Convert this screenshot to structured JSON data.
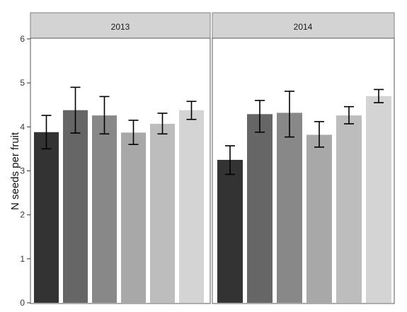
{
  "chart_data": {
    "type": "bar",
    "ylabel": "N seeds per fruit",
    "xlabel": "",
    "ylim": [
      0,
      6
    ],
    "yticks": [
      "0",
      "1",
      "2",
      "3",
      "4",
      "5",
      "6"
    ],
    "grid": false,
    "legend": "none",
    "panels": [
      {
        "strip": "2013",
        "values": [
          3.88,
          4.38,
          4.26,
          3.87,
          4.07,
          4.38
        ],
        "error_low": [
          3.5,
          3.86,
          3.84,
          3.6,
          3.84,
          4.17
        ],
        "error_high": [
          4.26,
          4.9,
          4.69,
          4.15,
          4.31,
          4.58
        ]
      },
      {
        "strip": "2014",
        "values": [
          3.25,
          4.29,
          4.32,
          3.82,
          4.26,
          4.7
        ],
        "error_low": [
          2.92,
          3.88,
          3.77,
          3.54,
          4.07,
          4.55
        ],
        "error_high": [
          3.57,
          4.6,
          4.81,
          4.12,
          4.46,
          4.85
        ]
      }
    ],
    "bar_colors": [
      "#333333",
      "#666666",
      "#888888",
      "#a8a8a8",
      "#bdbdbd",
      "#d4d4d4"
    ]
  }
}
